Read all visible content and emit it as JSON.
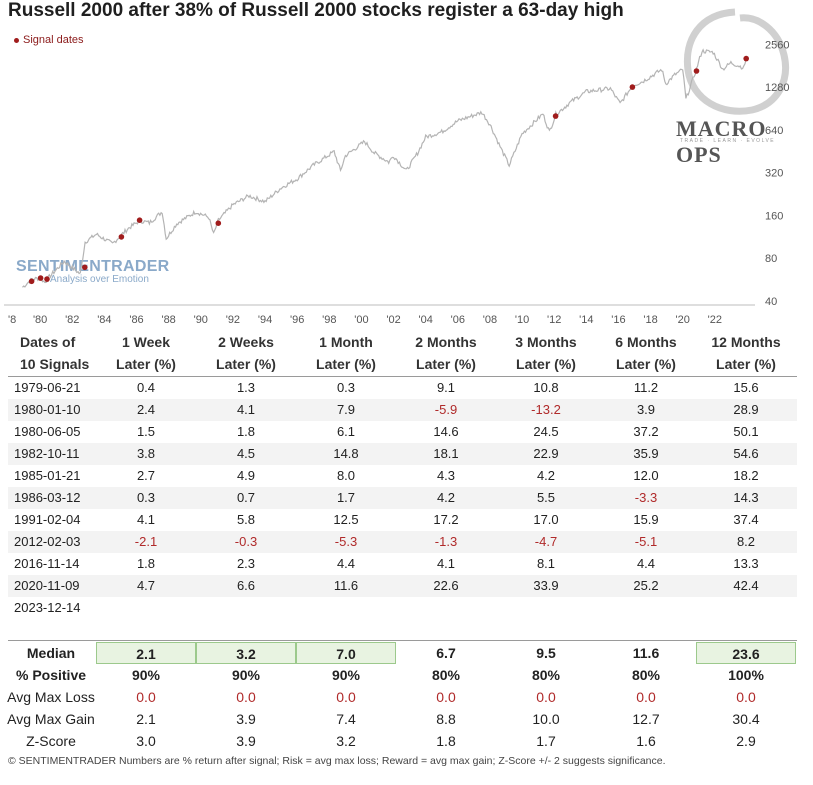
{
  "title": "Russell 2000 after 38% of Russell 2000 stocks register a 63-day high",
  "legend": {
    "label": "Signal dates",
    "color": "#a01c1c"
  },
  "logos": {
    "sentimentrader": "SENTIMENTRADER",
    "sentimentrader_tag": "Analysis over Emotion",
    "macro_ops": "MACRO OPS",
    "macro_ops_tag": "TRADE · LEARN · EVOLVE"
  },
  "chart_data": {
    "type": "line",
    "title": "Russell 2000 after 38% of Russell 2000 stocks register a 63-day high",
    "yscale": "log2",
    "ylim": [
      40,
      3500
    ],
    "yticks": [
      40,
      80,
      160,
      320,
      640,
      1280,
      2560
    ],
    "ytick_labels": [
      "40",
      "80",
      "160",
      "320",
      "640",
      "1280",
      "2560"
    ],
    "xlim": [
      1978,
      2024.5
    ],
    "xticks": [
      1978,
      1980,
      1982,
      1984,
      1986,
      1988,
      1990,
      1992,
      1994,
      1996,
      1998,
      2000,
      2002,
      2004,
      2006,
      2008,
      2010,
      2012,
      2014,
      2016,
      2018,
      2020,
      2022
    ],
    "xtick_labels": [
      "'8",
      "'80",
      "'82",
      "'84",
      "'86",
      "'88",
      "'90",
      "'92",
      "'94",
      "'96",
      "'98",
      "'00",
      "'02",
      "'04",
      "'06",
      "'08",
      "'10",
      "'12",
      "'14",
      "'16",
      "'18",
      "'20",
      "'22"
    ],
    "series": [
      {
        "name": "Russell 2000",
        "color": "#b4b4b4",
        "x": [
          1978.9,
          1979.5,
          1980.0,
          1980.3,
          1980.5,
          1981.5,
          1982.5,
          1982.8,
          1983.5,
          1984.5,
          1985.0,
          1985.5,
          1986.2,
          1986.8,
          1987.6,
          1987.85,
          1988.5,
          1989.7,
          1990.5,
          1990.8,
          1991.1,
          1992.0,
          1993.0,
          1994.0,
          1995.0,
          1996.0,
          1997.0,
          1998.3,
          1998.7,
          1999.0,
          2000.2,
          2000.8,
          2001.7,
          2002.0,
          2002.8,
          2003.5,
          2004.0,
          2005.0,
          2006.0,
          2007.5,
          2008.0,
          2008.7,
          2009.2,
          2010.0,
          2011.3,
          2011.7,
          2012.1,
          2013.0,
          2014.0,
          2015.5,
          2016.1,
          2016.9,
          2017.5,
          2018.7,
          2018.95,
          2019.5,
          2020.0,
          2020.2,
          2020.85,
          2021.2,
          2021.9,
          2022.5,
          2023.0,
          2023.8,
          2023.95
        ],
        "values": [
          50,
          57,
          58,
          54,
          58,
          76,
          62,
          104,
          118,
          101,
          115,
          130,
          147,
          142,
          170,
          110,
          140,
          170,
          155,
          118,
          148,
          190,
          220,
          200,
          250,
          290,
          360,
          450,
          330,
          420,
          530,
          440,
          380,
          420,
          330,
          440,
          570,
          620,
          740,
          850,
          700,
          470,
          360,
          600,
          830,
          620,
          820,
          1000,
          1190,
          1250,
          980,
          1320,
          1400,
          1700,
          1350,
          1560,
          1700,
          1050,
          1710,
          2300,
          2250,
          1710,
          1900,
          1750,
          2030
        ]
      }
    ],
    "signals": {
      "name": "Signal dates",
      "x": [
        1979.47,
        1980.03,
        1980.43,
        1982.78,
        1985.06,
        1986.19,
        1991.09,
        2012.09,
        2016.87,
        2020.86,
        2023.95
      ],
      "values": [
        55,
        58,
        57,
        69,
        113,
        148,
        141,
        800,
        1280,
        1660,
        2030
      ]
    }
  },
  "table": {
    "headers": [
      [
        "Dates of",
        "10 Signals"
      ],
      [
        "1 Week",
        "Later (%)"
      ],
      [
        "2 Weeks",
        "Later (%)"
      ],
      [
        "1 Month",
        "Later (%)"
      ],
      [
        "2 Months",
        "Later (%)"
      ],
      [
        "3 Months",
        "Later (%)"
      ],
      [
        "6 Months",
        "Later (%)"
      ],
      [
        "12 Months",
        "Later (%)"
      ]
    ],
    "rows": [
      {
        "date": "1979-06-21",
        "values": [
          "0.4",
          "1.3",
          "0.3",
          "9.1",
          "10.8",
          "11.2",
          "15.6"
        ]
      },
      {
        "date": "1980-01-10",
        "values": [
          "2.4",
          "4.1",
          "7.9",
          "-5.9",
          "-13.2",
          "3.9",
          "28.9"
        ]
      },
      {
        "date": "1980-06-05",
        "values": [
          "1.5",
          "1.8",
          "6.1",
          "14.6",
          "24.5",
          "37.2",
          "50.1"
        ]
      },
      {
        "date": "1982-10-11",
        "values": [
          "3.8",
          "4.5",
          "14.8",
          "18.1",
          "22.9",
          "35.9",
          "54.6"
        ]
      },
      {
        "date": "1985-01-21",
        "values": [
          "2.7",
          "4.9",
          "8.0",
          "4.3",
          "4.2",
          "12.0",
          "18.2"
        ]
      },
      {
        "date": "1986-03-12",
        "values": [
          "0.3",
          "0.7",
          "1.7",
          "4.2",
          "5.5",
          "-3.3",
          "14.3"
        ]
      },
      {
        "date": "1991-02-04",
        "values": [
          "4.1",
          "5.8",
          "12.5",
          "17.2",
          "17.0",
          "15.9",
          "37.4"
        ]
      },
      {
        "date": "2012-02-03",
        "values": [
          "-2.1",
          "-0.3",
          "-5.3",
          "-1.3",
          "-4.7",
          "-5.1",
          "8.2"
        ]
      },
      {
        "date": "2016-11-14",
        "values": [
          "1.8",
          "2.3",
          "4.4",
          "4.1",
          "8.1",
          "4.4",
          "13.3"
        ]
      },
      {
        "date": "2020-11-09",
        "values": [
          "4.7",
          "6.6",
          "11.6",
          "22.6",
          "33.9",
          "25.2",
          "42.4"
        ]
      },
      {
        "date": "2023-12-14",
        "values": [
          "",
          "",
          "",
          "",
          "",
          "",
          ""
        ]
      }
    ],
    "summary": [
      {
        "label": "Median",
        "values": [
          "2.1",
          "3.2",
          "7.0",
          "6.7",
          "9.5",
          "11.6",
          "23.6"
        ],
        "highlight": [
          true,
          true,
          true,
          false,
          false,
          false,
          true
        ]
      },
      {
        "label": "% Positive",
        "values": [
          "90%",
          "90%",
          "90%",
          "80%",
          "80%",
          "80%",
          "100%"
        ]
      },
      {
        "label": "Avg Max Loss",
        "values": [
          "0.0",
          "0.0",
          "0.0",
          "0.0",
          "0.0",
          "0.0",
          "0.0"
        ]
      },
      {
        "label": "Avg Max Gain",
        "values": [
          "2.1",
          "3.9",
          "7.4",
          "8.8",
          "10.0",
          "12.7",
          "30.4"
        ]
      },
      {
        "label": "Z-Score",
        "values": [
          "3.0",
          "3.9",
          "3.2",
          "1.8",
          "1.7",
          "1.6",
          "2.9"
        ]
      }
    ]
  },
  "footer": "© SENTIMENTRADER  Numbers are % return after signal; Risk = avg max loss; Reward = avg max gain; Z-Score +/- 2 suggests significance."
}
